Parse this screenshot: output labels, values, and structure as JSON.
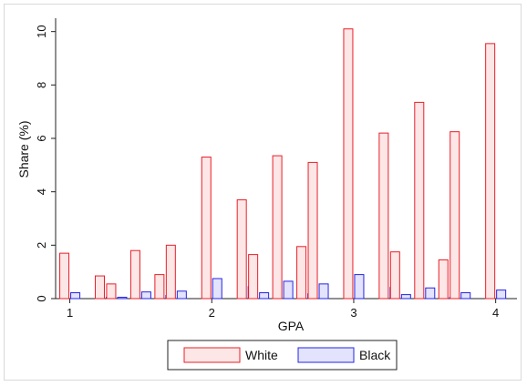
{
  "chart_data": {
    "type": "bar",
    "xlabel": "GPA",
    "ylabel": "Share (%)",
    "xlim": [
      0.9,
      4.15
    ],
    "ylim": [
      0,
      10.5
    ],
    "xticks": [
      1,
      2,
      3,
      4
    ],
    "xtick_labels": [
      "1",
      "2",
      "3",
      "4"
    ],
    "yticks": [
      0,
      2,
      4,
      6,
      8,
      10
    ],
    "ytick_labels": [
      "0",
      "2",
      "4",
      "6",
      "8",
      "10"
    ],
    "grid": false,
    "legend_position": "bottom",
    "x": [
      1.0,
      1.25,
      1.33,
      1.5,
      1.67,
      1.75,
      2.0,
      2.25,
      2.33,
      2.5,
      2.67,
      2.75,
      3.0,
      3.25,
      3.33,
      3.5,
      3.67,
      3.75,
      4.0
    ],
    "series": [
      {
        "name": "White",
        "fill": "#fde6e6",
        "stroke": "#e8202a",
        "values": [
          1.7,
          0.85,
          0.55,
          1.8,
          0.9,
          2.0,
          5.3,
          3.7,
          1.65,
          5.35,
          1.95,
          5.1,
          10.1,
          6.2,
          1.75,
          7.35,
          1.45,
          6.25,
          9.55
        ]
      },
      {
        "name": "Black",
        "fill": "#e3e3fd",
        "stroke": "#2424e6",
        "values": [
          0.22,
          0.05,
          0.05,
          0.25,
          0.12,
          0.28,
          0.75,
          0.45,
          0.22,
          0.65,
          0.18,
          0.55,
          0.9,
          0.42,
          0.15,
          0.4,
          0.05,
          0.22,
          0.32
        ]
      }
    ]
  }
}
